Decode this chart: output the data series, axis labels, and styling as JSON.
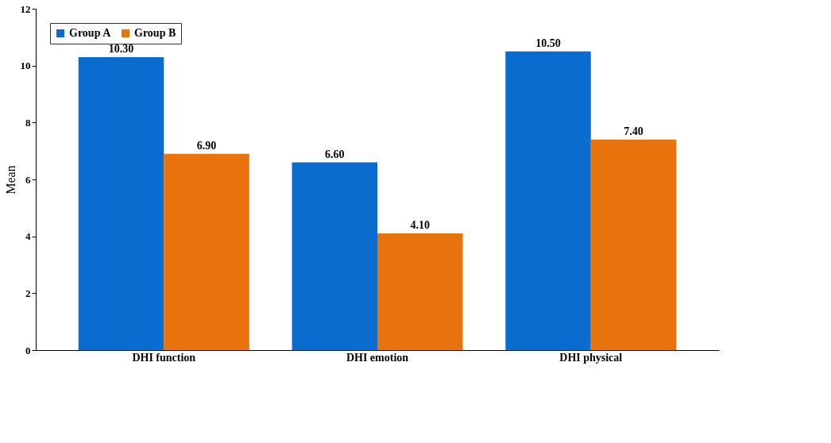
{
  "chart_data": {
    "type": "bar",
    "ylabel": "Mean",
    "categories": [
      "DHI function",
      "DHI emotion",
      "DHI physical"
    ],
    "series": [
      {
        "name": "Group A",
        "color": "#0a6ccf",
        "values": [
          10.3,
          6.6,
          10.5
        ],
        "value_labels": [
          "10.30",
          "6.60",
          "10.50"
        ]
      },
      {
        "name": "Group B",
        "color": "#e8720c",
        "values": [
          6.9,
          4.1,
          7.4
        ],
        "value_labels": [
          "6.90",
          "4.10",
          "7.40"
        ]
      }
    ],
    "ylim": [
      0,
      12
    ],
    "yticks": [
      0,
      2,
      4,
      6,
      8,
      10,
      12
    ],
    "grid": false,
    "legend": "top left"
  }
}
